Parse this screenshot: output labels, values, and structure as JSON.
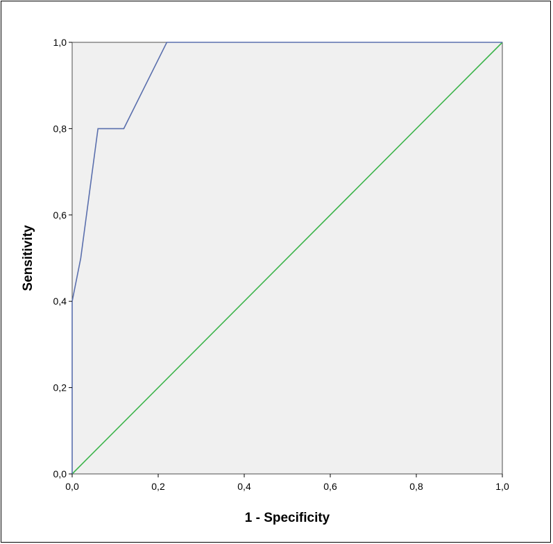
{
  "chart_data": {
    "type": "line",
    "title": "",
    "xlabel": "1 - Specificity",
    "ylabel": "Sensitivity",
    "xlim": [
      0.0,
      1.0
    ],
    "ylim": [
      0.0,
      1.0
    ],
    "x_ticks": [
      "0,0",
      "0,2",
      "0,4",
      "0,6",
      "0,8",
      "1,0"
    ],
    "y_ticks": [
      "0,0",
      "0,2",
      "0,4",
      "0,6",
      "0,8",
      "1,0"
    ],
    "grid": false,
    "legend": "none",
    "background_color": "#f0f0f0",
    "series": [
      {
        "color": "#5a6fad",
        "x": [
          0.0,
          0.0,
          0.02,
          0.06,
          0.12,
          0.22,
          1.0
        ],
        "y": [
          0.0,
          0.4,
          0.5,
          0.8,
          0.8,
          1.0,
          1.0
        ]
      },
      {
        "color": "#3cb44b",
        "x": [
          0.0,
          1.0
        ],
        "y": [
          0.0,
          1.0
        ]
      }
    ]
  }
}
